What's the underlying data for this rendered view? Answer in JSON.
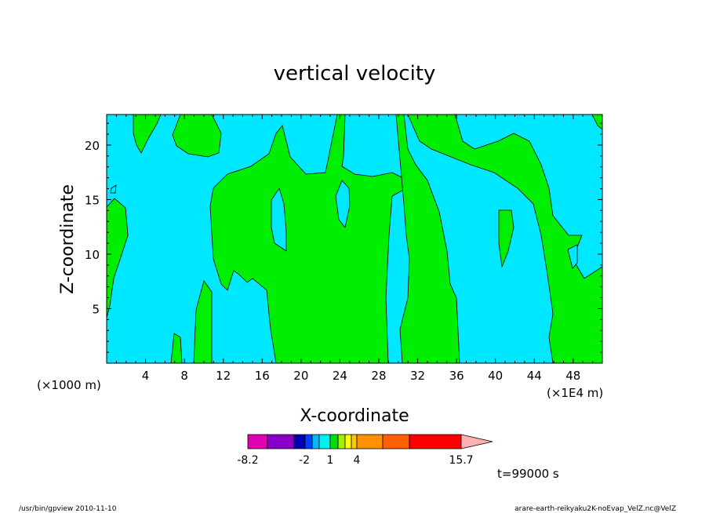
{
  "chart_data": {
    "type": "heatmap",
    "title": "vertical velocity",
    "xlabel": "X-coordinate",
    "ylabel": "Z-coordinate",
    "x_unit_left": "(×1000 m)",
    "x_unit_right": "(×1E4 m)",
    "xlim": [
      0,
      51
    ],
    "ylim": [
      0,
      22.8
    ],
    "x_ticks": [
      "4",
      "8",
      "12",
      "16",
      "20",
      "24",
      "28",
      "32",
      "36",
      "40",
      "44",
      "48"
    ],
    "y_ticks": [
      "5",
      "10",
      "15",
      "20"
    ],
    "contour_levels": {
      "background_color": "#00e8ff",
      "positive_color": "#00ee00"
    },
    "colorbar": {
      "labels": [
        "-8.2",
        "-2",
        "1",
        "4",
        "15.7"
      ],
      "colors": [
        "#e000b0",
        "#8800c8",
        "#0000b0",
        "#0040ff",
        "#00b8ff",
        "#00f0f0",
        "#00e000",
        "#a0f000",
        "#ffff00",
        "#ffc800",
        "#ff9000",
        "#ff6000",
        "#ff0000",
        "#ff7070",
        "#ffb0b0"
      ]
    },
    "time_label": "t=99000 s"
  },
  "footer": {
    "left": "/usr/bin/gpview  2010-11-10",
    "right": "arare-earth-reikyaku2K-noEvap_VelZ.nc@VelZ"
  }
}
